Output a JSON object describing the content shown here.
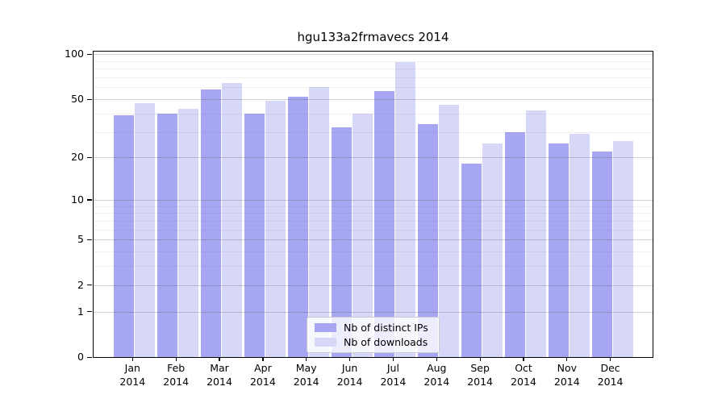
{
  "chart_data": {
    "type": "bar",
    "title": "hgu133a2frmavecs 2014",
    "categories": [
      "Jan",
      "Feb",
      "Mar",
      "Apr",
      "May",
      "Jun",
      "Jul",
      "Aug",
      "Sep",
      "Oct",
      "Nov",
      "Dec"
    ],
    "x_year_label": "2014",
    "series": [
      {
        "name": "Nb of distinct IPs",
        "color": "#a6a6f2",
        "values": [
          39,
          40,
          58,
          40,
          52,
          32,
          57,
          34,
          18,
          30,
          25,
          22
        ]
      },
      {
        "name": "Nb of downloads",
        "color": "#d7d7f7",
        "values": [
          47,
          43,
          64,
          49,
          60,
          40,
          89,
          46,
          25,
          42,
          29,
          26
        ]
      }
    ],
    "y_axis": {
      "scale": "log10(1+value)",
      "tick_labels": [
        100,
        50,
        20,
        10,
        5,
        2,
        1,
        0
      ],
      "minor_gridline_values": [
        3,
        4,
        6,
        7,
        8,
        9,
        30,
        40,
        60,
        70,
        80,
        90
      ],
      "top_value": 107
    },
    "grid": true,
    "legend_position": "inside-bottom-center",
    "colors": {
      "spine": "#000000",
      "major_grid": "#cfcfcf",
      "minor_grid": "#ebebeb",
      "legend_border": "#cccccc"
    }
  }
}
